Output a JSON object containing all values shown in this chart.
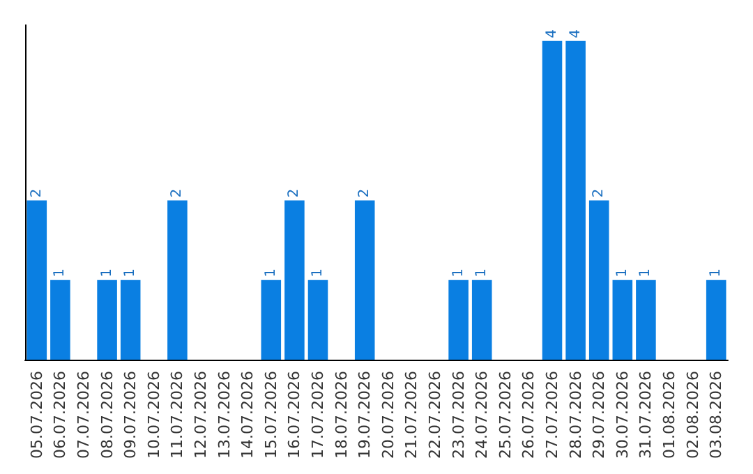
{
  "chart_data": {
    "type": "bar",
    "categories": [
      "05.07.2026",
      "06.07.2026",
      "07.07.2026",
      "08.07.2026",
      "09.07.2026",
      "10.07.2026",
      "11.07.2026",
      "12.07.2026",
      "13.07.2026",
      "14.07.2026",
      "15.07.2026",
      "16.07.2026",
      "17.07.2026",
      "18.07.2026",
      "19.07.2026",
      "20.07.2026",
      "21.07.2026",
      "22.07.2026",
      "23.07.2026",
      "24.07.2026",
      "25.07.2026",
      "26.07.2026",
      "27.07.2026",
      "28.07.2026",
      "29.07.2026",
      "30.07.2026",
      "31.07.2026",
      "01.08.2026",
      "02.08.2026",
      "03.08.2026"
    ],
    "values": [
      2,
      1,
      0,
      1,
      1,
      0,
      2,
      0,
      0,
      0,
      1,
      2,
      1,
      0,
      2,
      0,
      0,
      0,
      1,
      1,
      0,
      0,
      4,
      4,
      2,
      1,
      1,
      0,
      0,
      1
    ],
    "value_labels": [
      "2",
      "1",
      null,
      "1",
      "1",
      null,
      "2",
      null,
      null,
      null,
      "1",
      "2",
      "1",
      null,
      "2",
      null,
      null,
      null,
      "1",
      "1",
      null,
      null,
      "4",
      "4",
      "2",
      "1",
      "1",
      null,
      null,
      "1"
    ],
    "color": "#0a7fe2",
    "ylim": [
      0,
      4.2
    ],
    "tick_labels": "x",
    "grid": false
  }
}
